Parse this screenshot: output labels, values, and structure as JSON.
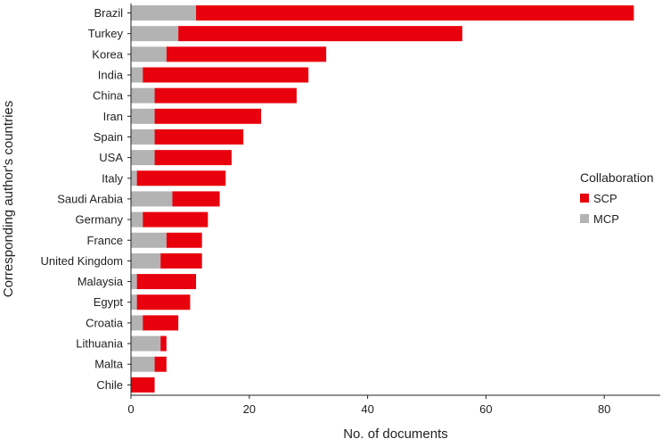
{
  "chart_data": {
    "type": "bar",
    "orientation": "horizontal",
    "stacked": true,
    "xlabel": "No. of documents",
    "ylabel": "Corresponding author's countries",
    "xlim": [
      0,
      89
    ],
    "xticks": [
      "0",
      "20",
      "40",
      "60",
      "80"
    ],
    "grid": false,
    "legend_position": "right",
    "legend_title": "Collaboration",
    "categories": [
      "Brazil",
      "Turkey",
      "Korea",
      "India",
      "China",
      "Iran",
      "Spain",
      "USA",
      "Italy",
      "Saudi Arabia",
      "Germany",
      "France",
      "United Kingdom",
      "Malaysia",
      "Egypt",
      "Croatia",
      "Lithuania",
      "Malta",
      "Chile"
    ],
    "series": [
      {
        "name": "MCP",
        "color": "#b3b3b3",
        "values": [
          11,
          8,
          6,
          2,
          4,
          4,
          4,
          4,
          1,
          7,
          2,
          6,
          5,
          1,
          1,
          2,
          5,
          4,
          0
        ]
      },
      {
        "name": "SCP",
        "color": "#e8000d",
        "values": [
          74,
          48,
          27,
          28,
          24,
          18,
          15,
          13,
          15,
          8,
          11,
          6,
          7,
          10,
          9,
          6,
          1,
          2,
          4
        ]
      }
    ],
    "legend_order": [
      "SCP",
      "MCP"
    ]
  }
}
